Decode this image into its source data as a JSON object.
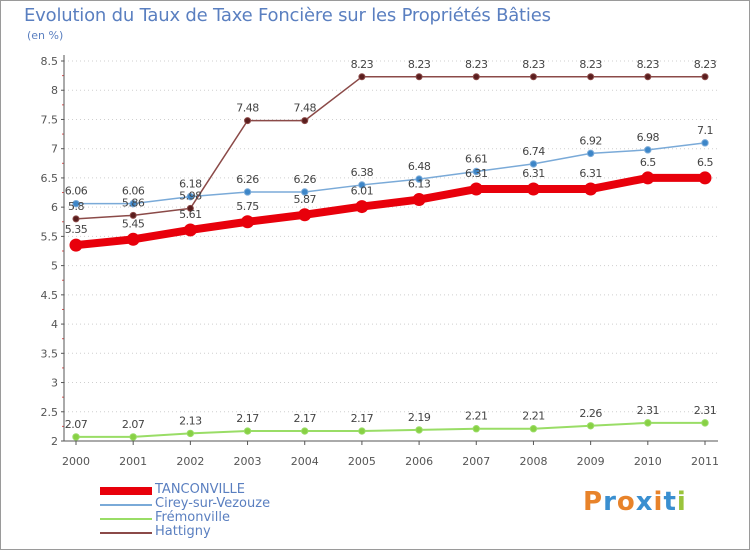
{
  "title": "Evolution du Taux de Taxe Foncière sur les Propriétés Bâties",
  "unit": "(en %)",
  "logo": {
    "text": "Proxiti",
    "letter_colors": [
      "#e8832a",
      "#3a8fd0",
      "#e8832a",
      "#3a8fd0",
      "#e8832a",
      "#3a8fd0",
      "#9ac43c"
    ]
  },
  "colors": {
    "axis": "#555555",
    "grid": "#cfcfcf",
    "label": "#555555"
  },
  "chart_data": {
    "type": "line",
    "title": "Evolution du Taux de Taxe Foncière sur les Propriétés Bâties",
    "ylabel": "(en %)",
    "xlabel": "",
    "ylim": [
      2,
      8.5
    ],
    "yticks": [
      "2",
      "2.5",
      "3",
      "3.5",
      "4",
      "4.5",
      "5",
      "5.5",
      "6",
      "6.5",
      "7",
      "7.5",
      "8",
      "8.5"
    ],
    "ytick_values": [
      2,
      2.5,
      3,
      3.5,
      4,
      4.5,
      5,
      5.5,
      6,
      6.5,
      7,
      7.5,
      8,
      8.5
    ],
    "categories": [
      "2000",
      "2001",
      "2002",
      "2003",
      "2004",
      "2005",
      "2006",
      "2007",
      "2008",
      "2009",
      "2010",
      "2011"
    ],
    "legend_position": "bottom-left",
    "series": [
      {
        "name": "TANCONVILLE",
        "color": "#e8000b",
        "values": [
          5.35,
          5.45,
          5.61,
          5.75,
          5.87,
          6.01,
          6.13,
          6.31,
          6.31,
          6.31,
          6.5,
          6.5
        ],
        "labels": [
          "5.35",
          "5.45",
          "5.61",
          "5.75",
          "5.87",
          "6.01",
          "6.13",
          "6.31",
          "6.31",
          "6.31",
          "6.5",
          "6.5"
        ]
      },
      {
        "name": "Cirey-sur-Vezouze",
        "color": "#7aaad8",
        "values": [
          6.06,
          6.06,
          6.18,
          6.26,
          6.26,
          6.38,
          6.48,
          6.61,
          6.74,
          6.92,
          6.98,
          7.1
        ],
        "labels": [
          "6.06",
          "6.06",
          "6.18",
          "6.26",
          "6.26",
          "6.38",
          "6.48",
          "6.61",
          "6.74",
          "6.92",
          "6.98",
          "7.1"
        ]
      },
      {
        "name": "Frémonville",
        "color": "#99dd66",
        "values": [
          2.07,
          2.07,
          2.13,
          2.17,
          2.17,
          2.17,
          2.19,
          2.21,
          2.21,
          2.26,
          2.31,
          2.31
        ],
        "labels": [
          "2.07",
          "2.07",
          "2.13",
          "2.17",
          "2.17",
          "2.17",
          "2.19",
          "2.21",
          "2.21",
          "2.26",
          "2.31",
          "2.31"
        ]
      },
      {
        "name": "Hattigny",
        "color": "#8b4a48",
        "values": [
          5.8,
          5.86,
          5.98,
          7.48,
          7.48,
          8.23,
          8.23,
          8.23,
          8.23,
          8.23,
          8.23,
          8.23
        ],
        "labels": [
          "5.8",
          "5.86",
          "5.98",
          "7.48",
          "7.48",
          "8.23",
          "8.23",
          "8.23",
          "8.23",
          "8.23",
          "8.23",
          "8.23"
        ]
      }
    ]
  }
}
